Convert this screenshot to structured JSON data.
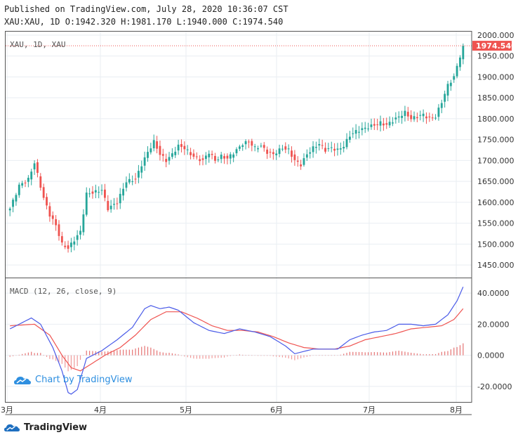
{
  "header": {
    "published": "Published on TradingView.com, July 28, 2020 10:36:07 CST",
    "ohlc": "XAU:XAU, 1D O:1942.320 H:1981.170 L:1940.000 C:1974.540"
  },
  "branding": {
    "watermark": "Chart by TradingView",
    "footer": "TradingView",
    "logo_icon": "tradingview-cloud-icon"
  },
  "colors": {
    "up": "#26a69a",
    "down": "#ef5350",
    "macd_line": "#4a5be8",
    "signal_line": "#ef5350",
    "hist_pos": "#e57373",
    "hist_neg": "#ef9a9a",
    "grid": "#e9eef2",
    "price_tag": "#ef5350"
  },
  "chart_data": [
    {
      "type": "candlestick",
      "title": "XAU, 1D, XAU",
      "y_ticks": [
        "2000.000",
        "1950.000",
        "1900.000",
        "1850.000",
        "1800.000",
        "1750.000",
        "1700.000",
        "1650.000",
        "1600.000",
        "1550.000",
        "1500.000",
        "1450.000"
      ],
      "ylim": [
        1420,
        2010
      ],
      "x_ticks": [
        "3月",
        "4月",
        "5月",
        "6月",
        "7月",
        "8月"
      ],
      "last_price": 1974.54,
      "last_price_label": "1974.540",
      "grid": true,
      "anchors": [
        [
          0,
          1585
        ],
        [
          3,
          1640
        ],
        [
          6,
          1655
        ],
        [
          8,
          1695
        ],
        [
          11,
          1610
        ],
        [
          13,
          1570
        ],
        [
          15,
          1545
        ],
        [
          17,
          1500
        ],
        [
          19,
          1490
        ],
        [
          21,
          1510
        ],
        [
          23,
          1530
        ],
        [
          25,
          1620
        ],
        [
          28,
          1625
        ],
        [
          30,
          1630
        ],
        [
          32,
          1585
        ],
        [
          35,
          1600
        ],
        [
          38,
          1650
        ],
        [
          41,
          1655
        ],
        [
          43,
          1690
        ],
        [
          45,
          1720
        ],
        [
          47,
          1745
        ],
        [
          49,
          1715
        ],
        [
          51,
          1700
        ],
        [
          53,
          1715
        ],
        [
          55,
          1735
        ],
        [
          57,
          1730
        ],
        [
          59,
          1715
        ],
        [
          61,
          1705
        ],
        [
          63,
          1700
        ],
        [
          65,
          1720
        ],
        [
          67,
          1700
        ],
        [
          69,
          1710
        ],
        [
          71,
          1705
        ],
        [
          74,
          1725
        ],
        [
          76,
          1740
        ],
        [
          78,
          1745
        ],
        [
          80,
          1730
        ],
        [
          82,
          1735
        ],
        [
          84,
          1720
        ],
        [
          86,
          1715
        ],
        [
          89,
          1730
        ],
        [
          91,
          1725
        ],
        [
          93,
          1700
        ],
        [
          95,
          1690
        ],
        [
          97,
          1715
        ],
        [
          99,
          1730
        ],
        [
          101,
          1740
        ],
        [
          103,
          1725
        ],
        [
          105,
          1730
        ],
        [
          107,
          1725
        ],
        [
          109,
          1735
        ],
        [
          111,
          1760
        ],
        [
          113,
          1770
        ],
        [
          115,
          1775
        ],
        [
          117,
          1780
        ],
        [
          119,
          1785
        ],
        [
          121,
          1790
        ],
        [
          123,
          1785
        ],
        [
          125,
          1795
        ],
        [
          127,
          1805
        ],
        [
          129,
          1815
        ],
        [
          131,
          1800
        ],
        [
          133,
          1805
        ],
        [
          135,
          1810
        ],
        [
          137,
          1800
        ],
        [
          139,
          1805
        ],
        [
          141,
          1840
        ],
        [
          143,
          1880
        ],
        [
          145,
          1900
        ],
        [
          147,
          1950
        ],
        [
          148,
          1974.54
        ]
      ],
      "n_candles": 149
    },
    {
      "type": "line",
      "title": "MACD (12, 26, close, 9)",
      "y_ticks": [
        "40.0000",
        "20.0000",
        "0.0000",
        "-20.0000"
      ],
      "ylim": [
        -30,
        50
      ],
      "series": [
        {
          "name": "MACD",
          "anchors": [
            [
              0,
              17
            ],
            [
              7,
              24
            ],
            [
              10,
              20
            ],
            [
              14,
              5
            ],
            [
              17,
              -10
            ],
            [
              19,
              -24
            ],
            [
              20,
              -25
            ],
            [
              22,
              -22
            ],
            [
              25,
              -2
            ],
            [
              30,
              3
            ],
            [
              35,
              10
            ],
            [
              40,
              18
            ],
            [
              44,
              30
            ],
            [
              46,
              32
            ],
            [
              49,
              30
            ],
            [
              52,
              31
            ],
            [
              55,
              29
            ],
            [
              60,
              21
            ],
            [
              65,
              16
            ],
            [
              70,
              14
            ],
            [
              75,
              17
            ],
            [
              80,
              15
            ],
            [
              85,
              12
            ],
            [
              90,
              6
            ],
            [
              93,
              1
            ],
            [
              95,
              2
            ],
            [
              99,
              4
            ],
            [
              103,
              4
            ],
            [
              107,
              4
            ],
            [
              111,
              10
            ],
            [
              115,
              13
            ],
            [
              119,
              15
            ],
            [
              123,
              16
            ],
            [
              127,
              20
            ],
            [
              131,
              20
            ],
            [
              135,
              19
            ],
            [
              139,
              20
            ],
            [
              143,
              26
            ],
            [
              146,
              35
            ],
            [
              148,
              44
            ]
          ]
        },
        {
          "name": "Signal",
          "anchors": [
            [
              0,
              19
            ],
            [
              8,
              20
            ],
            [
              13,
              13
            ],
            [
              17,
              0
            ],
            [
              20,
              -8
            ],
            [
              23,
              -10
            ],
            [
              27,
              -5
            ],
            [
              31,
              0
            ],
            [
              36,
              5
            ],
            [
              41,
              13
            ],
            [
              46,
              23
            ],
            [
              51,
              28
            ],
            [
              56,
              28
            ],
            [
              61,
              24
            ],
            [
              66,
              19
            ],
            [
              71,
              16
            ],
            [
              76,
              16
            ],
            [
              81,
              15
            ],
            [
              86,
              12
            ],
            [
              91,
              8
            ],
            [
              96,
              5
            ],
            [
              101,
              4
            ],
            [
              106,
              4
            ],
            [
              111,
              6
            ],
            [
              116,
              10
            ],
            [
              121,
              12
            ],
            [
              126,
              14
            ],
            [
              131,
              17
            ],
            [
              136,
              18
            ],
            [
              141,
              19
            ],
            [
              145,
              23
            ],
            [
              148,
              30
            ]
          ]
        }
      ]
    }
  ],
  "price_scale": {
    "main_label": "XAU, 1D, XAU"
  }
}
